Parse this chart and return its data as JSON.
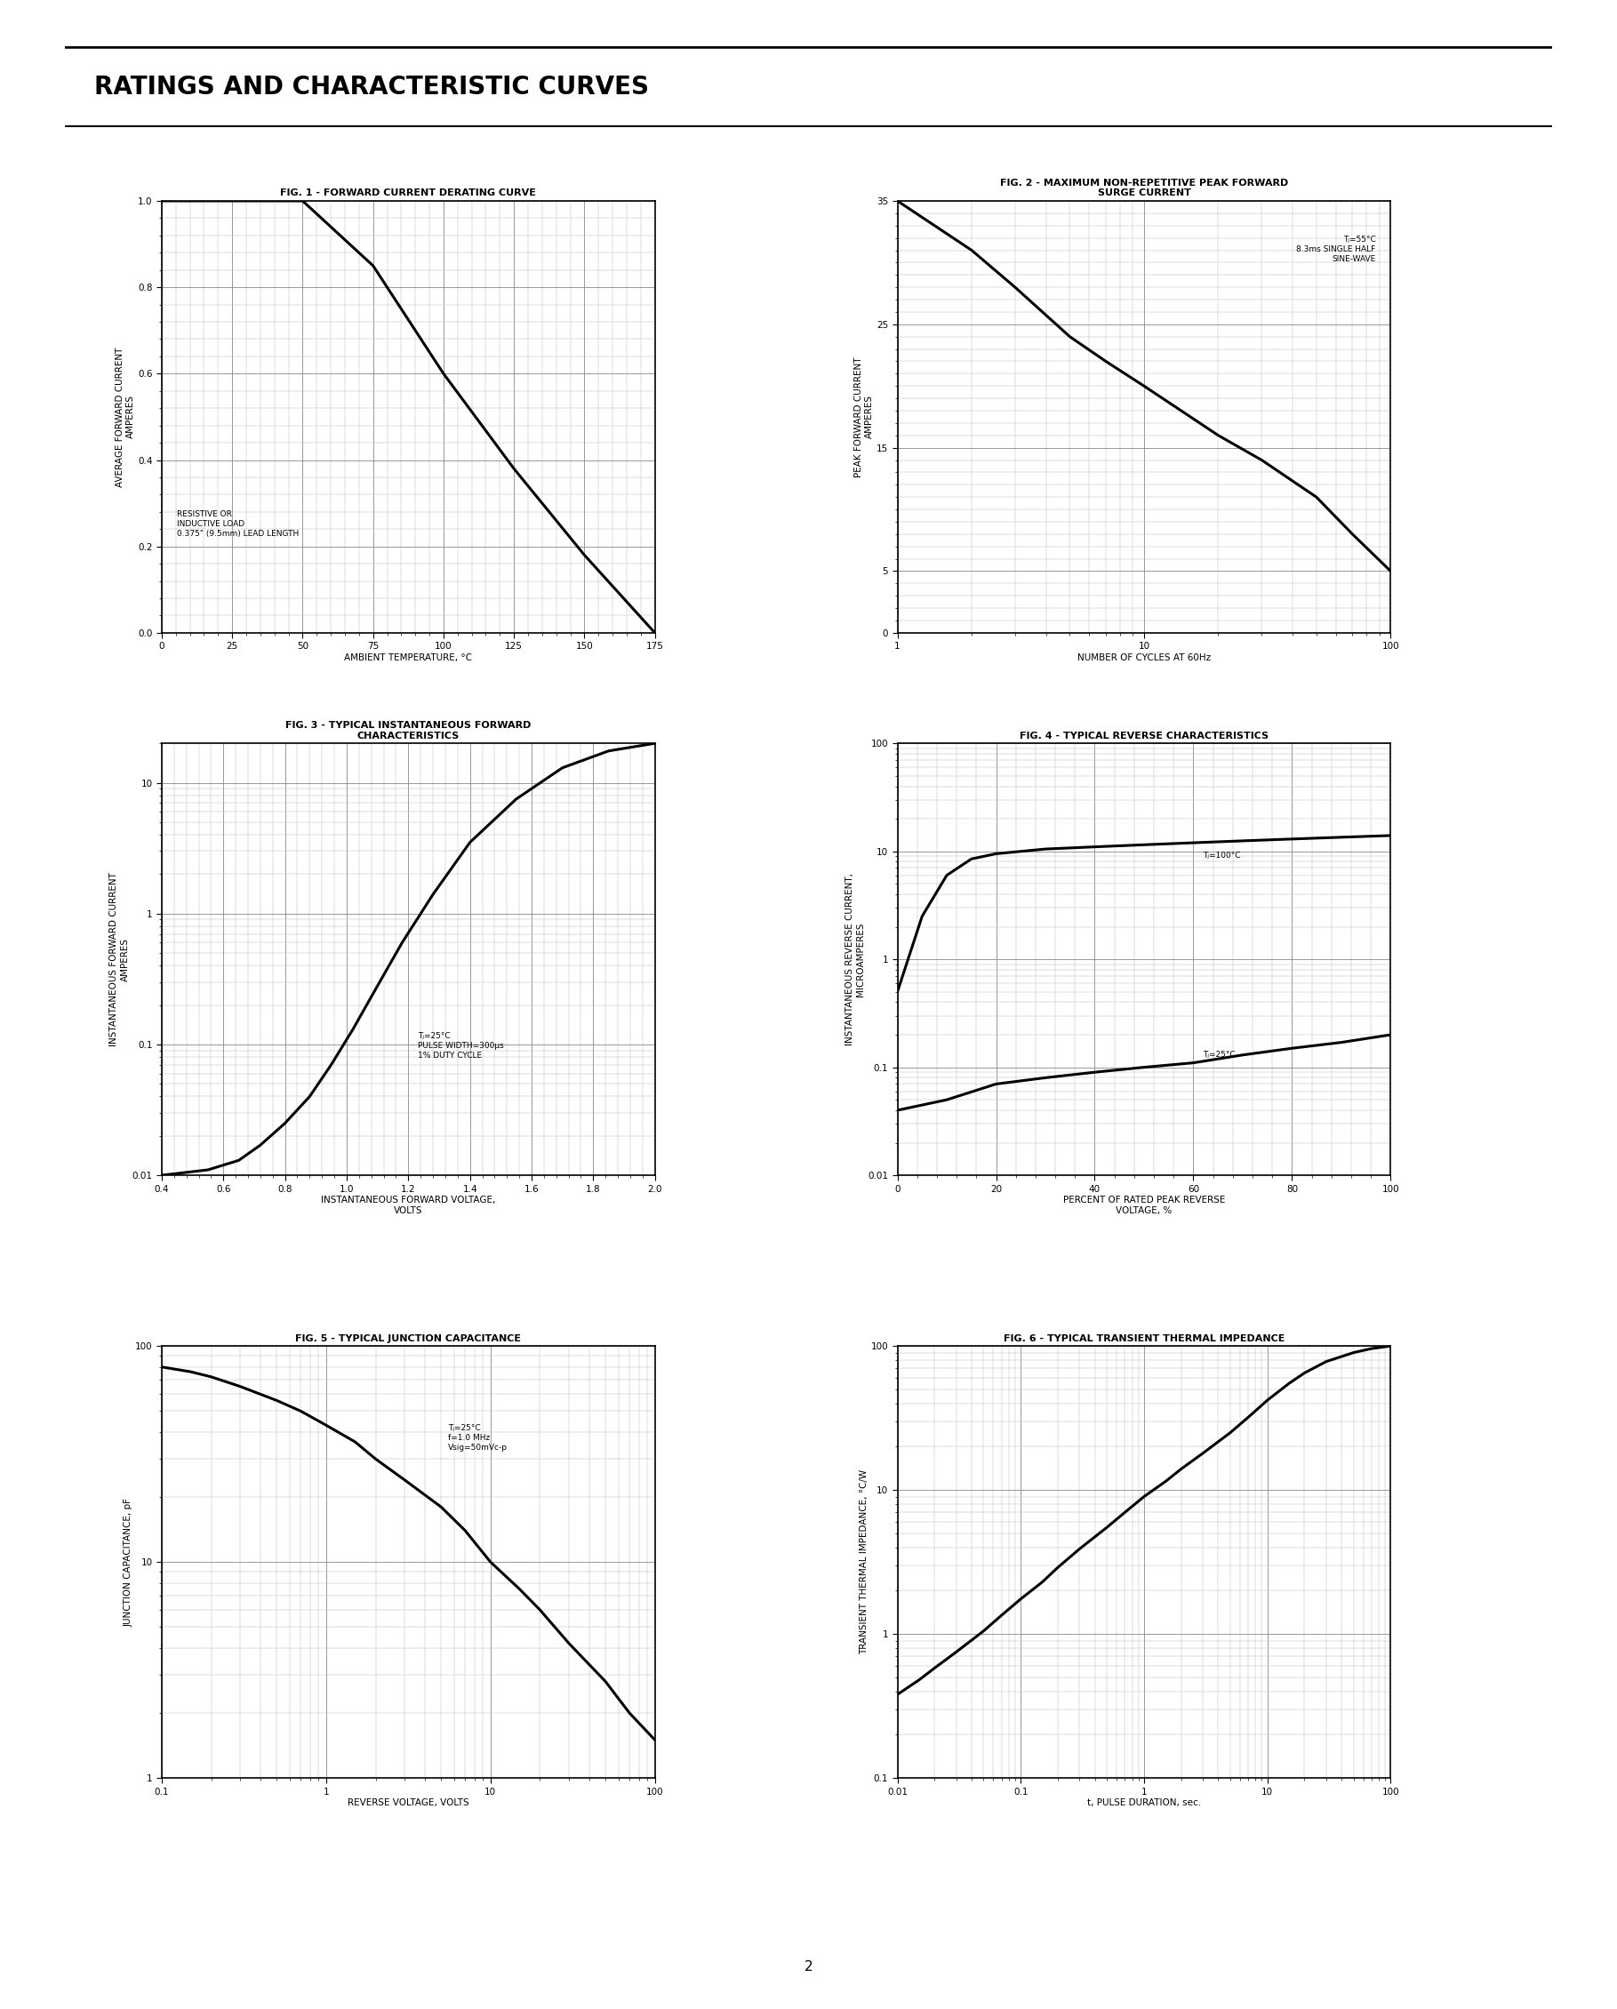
{
  "title": "RATINGS AND CHARACTERISTIC CURVES",
  "page_number": "2",
  "background_color": "#ffffff",
  "fig1": {
    "title": "FIG. 1 - FORWARD CURRENT DERATING CURVE",
    "xlabel": "AMBIENT TEMPERATURE, °C",
    "ylabel": "AVERAGE FORWARD CURRENT\nAMPERES",
    "xlim": [
      0,
      175
    ],
    "ylim": [
      0,
      1.0
    ],
    "xticks": [
      0,
      25,
      50,
      75,
      100,
      125,
      150,
      175
    ],
    "yticks": [
      0,
      0.2,
      0.4,
      0.6,
      0.8,
      1.0
    ],
    "annotation": "RESISTIVE OR\nINDUCTIVE LOAD\n0.375\" (9.5mm) LEAD LENGTH",
    "curve_x": [
      0,
      50,
      75,
      100,
      125,
      150,
      175
    ],
    "curve_y": [
      1.0,
      1.0,
      0.85,
      0.6,
      0.38,
      0.18,
      0.0
    ]
  },
  "fig2": {
    "title_line1": "FIG. 2 - MAXIMUM NON-REPETITIVE PEAK FORWARD",
    "title_line2": "SURGE CURRENT",
    "xlabel": "NUMBER OF CYCLES AT 60Hz",
    "ylabel": "PEAK FORWARD CURRENT\nAMPERES",
    "ylim": [
      0,
      35
    ],
    "yticks": [
      0,
      5,
      15,
      25,
      35
    ],
    "annotation": "Tⱼ=55°C\n8.3ms SINGLE HALF\nSINE-WAVE",
    "curve_x": [
      1,
      2,
      3,
      5,
      7,
      10,
      20,
      30,
      50,
      70,
      100
    ],
    "curve_y": [
      35,
      31,
      28,
      24,
      22,
      20,
      16,
      14,
      11,
      8,
      5
    ]
  },
  "fig3": {
    "title_line1": "FIG. 3 - TYPICAL INSTANTANEOUS FORWARD",
    "title_line2": "CHARACTERISTICS",
    "xlabel": "INSTANTANEOUS FORWARD VOLTAGE,\nVOLTS",
    "ylabel": "INSTANTANEOUS FORWARD CURRENT\nAMPERES",
    "xlim": [
      0.4,
      2.0
    ],
    "xticks": [
      0.4,
      0.6,
      0.8,
      1.0,
      1.2,
      1.4,
      1.6,
      1.8,
      2.0
    ],
    "annotation": "Tⱼ=25°C\nPULSE WIDTH=300μs\n1% DUTY CYCLE",
    "curve_x": [
      0.4,
      0.55,
      0.65,
      0.72,
      0.8,
      0.88,
      0.95,
      1.02,
      1.1,
      1.18,
      1.28,
      1.4,
      1.55,
      1.7,
      1.85,
      2.0
    ],
    "curve_y": [
      0.01,
      0.011,
      0.013,
      0.017,
      0.025,
      0.04,
      0.07,
      0.13,
      0.28,
      0.6,
      1.4,
      3.5,
      7.5,
      13.0,
      17.5,
      20.0
    ]
  },
  "fig4": {
    "title": "FIG. 4 - TYPICAL REVERSE CHARACTERISTICS",
    "xlabel": "PERCENT OF RATED PEAK REVERSE\nVOLTAGE, %",
    "ylabel": "INSTANTANEOUS REVERSE CURRENT,\nMICROAMPERES",
    "xlim": [
      0,
      100
    ],
    "xticks": [
      0,
      20,
      40,
      60,
      80,
      100
    ],
    "annotation1": "Tⱼ=100°C",
    "annotation2": "Tⱼ=25°C",
    "curve1_x": [
      0,
      5,
      10,
      15,
      20,
      30,
      40,
      50,
      60,
      70,
      80,
      90,
      100
    ],
    "curve1_y": [
      0.5,
      2.5,
      6.0,
      8.5,
      9.5,
      10.5,
      11.0,
      11.5,
      12.0,
      12.5,
      13.0,
      13.5,
      14.0
    ],
    "curve2_x": [
      0,
      10,
      20,
      30,
      40,
      50,
      60,
      70,
      80,
      90,
      100
    ],
    "curve2_y": [
      0.04,
      0.05,
      0.07,
      0.08,
      0.09,
      0.1,
      0.11,
      0.13,
      0.15,
      0.17,
      0.2
    ]
  },
  "fig5": {
    "title": "FIG. 5 - TYPICAL JUNCTION CAPACITANCE",
    "xlabel": "REVERSE VOLTAGE, VOLTS",
    "ylabel": "JUNCTION CAPACITANCE, pF",
    "annotation": "Tⱼ=25°C\nf=1.0 MHz\nVsig=50mVc-p",
    "curve_x": [
      0.1,
      0.15,
      0.2,
      0.3,
      0.5,
      0.7,
      1.0,
      1.5,
      2.0,
      3.0,
      5.0,
      7.0,
      10.0,
      15.0,
      20.0,
      30.0,
      50.0,
      70.0,
      100.0
    ],
    "curve_y": [
      80,
      76,
      72,
      65,
      56,
      50,
      43,
      36,
      30,
      24,
      18,
      14,
      10,
      7.5,
      6.0,
      4.2,
      2.8,
      2.0,
      1.5
    ]
  },
  "fig6": {
    "title": "FIG. 6 - TYPICAL TRANSIENT THERMAL IMPEDANCE",
    "xlabel": "t, PULSE DURATION, sec.",
    "ylabel": "TRANSIENT THERMAL IMPEDANCE, °C/W",
    "curve_x": [
      0.01,
      0.015,
      0.02,
      0.03,
      0.05,
      0.07,
      0.1,
      0.15,
      0.2,
      0.3,
      0.5,
      0.7,
      1.0,
      1.5,
      2.0,
      3.0,
      5.0,
      7.0,
      10.0,
      15.0,
      20.0,
      30.0,
      50.0,
      70.0,
      100.0
    ],
    "curve_y": [
      0.38,
      0.48,
      0.58,
      0.75,
      1.05,
      1.35,
      1.75,
      2.3,
      2.9,
      3.9,
      5.5,
      7.0,
      9.0,
      11.5,
      14.0,
      18.0,
      25.0,
      32.0,
      42.0,
      55.0,
      65.0,
      78.0,
      90.0,
      96.0,
      100.0
    ]
  }
}
